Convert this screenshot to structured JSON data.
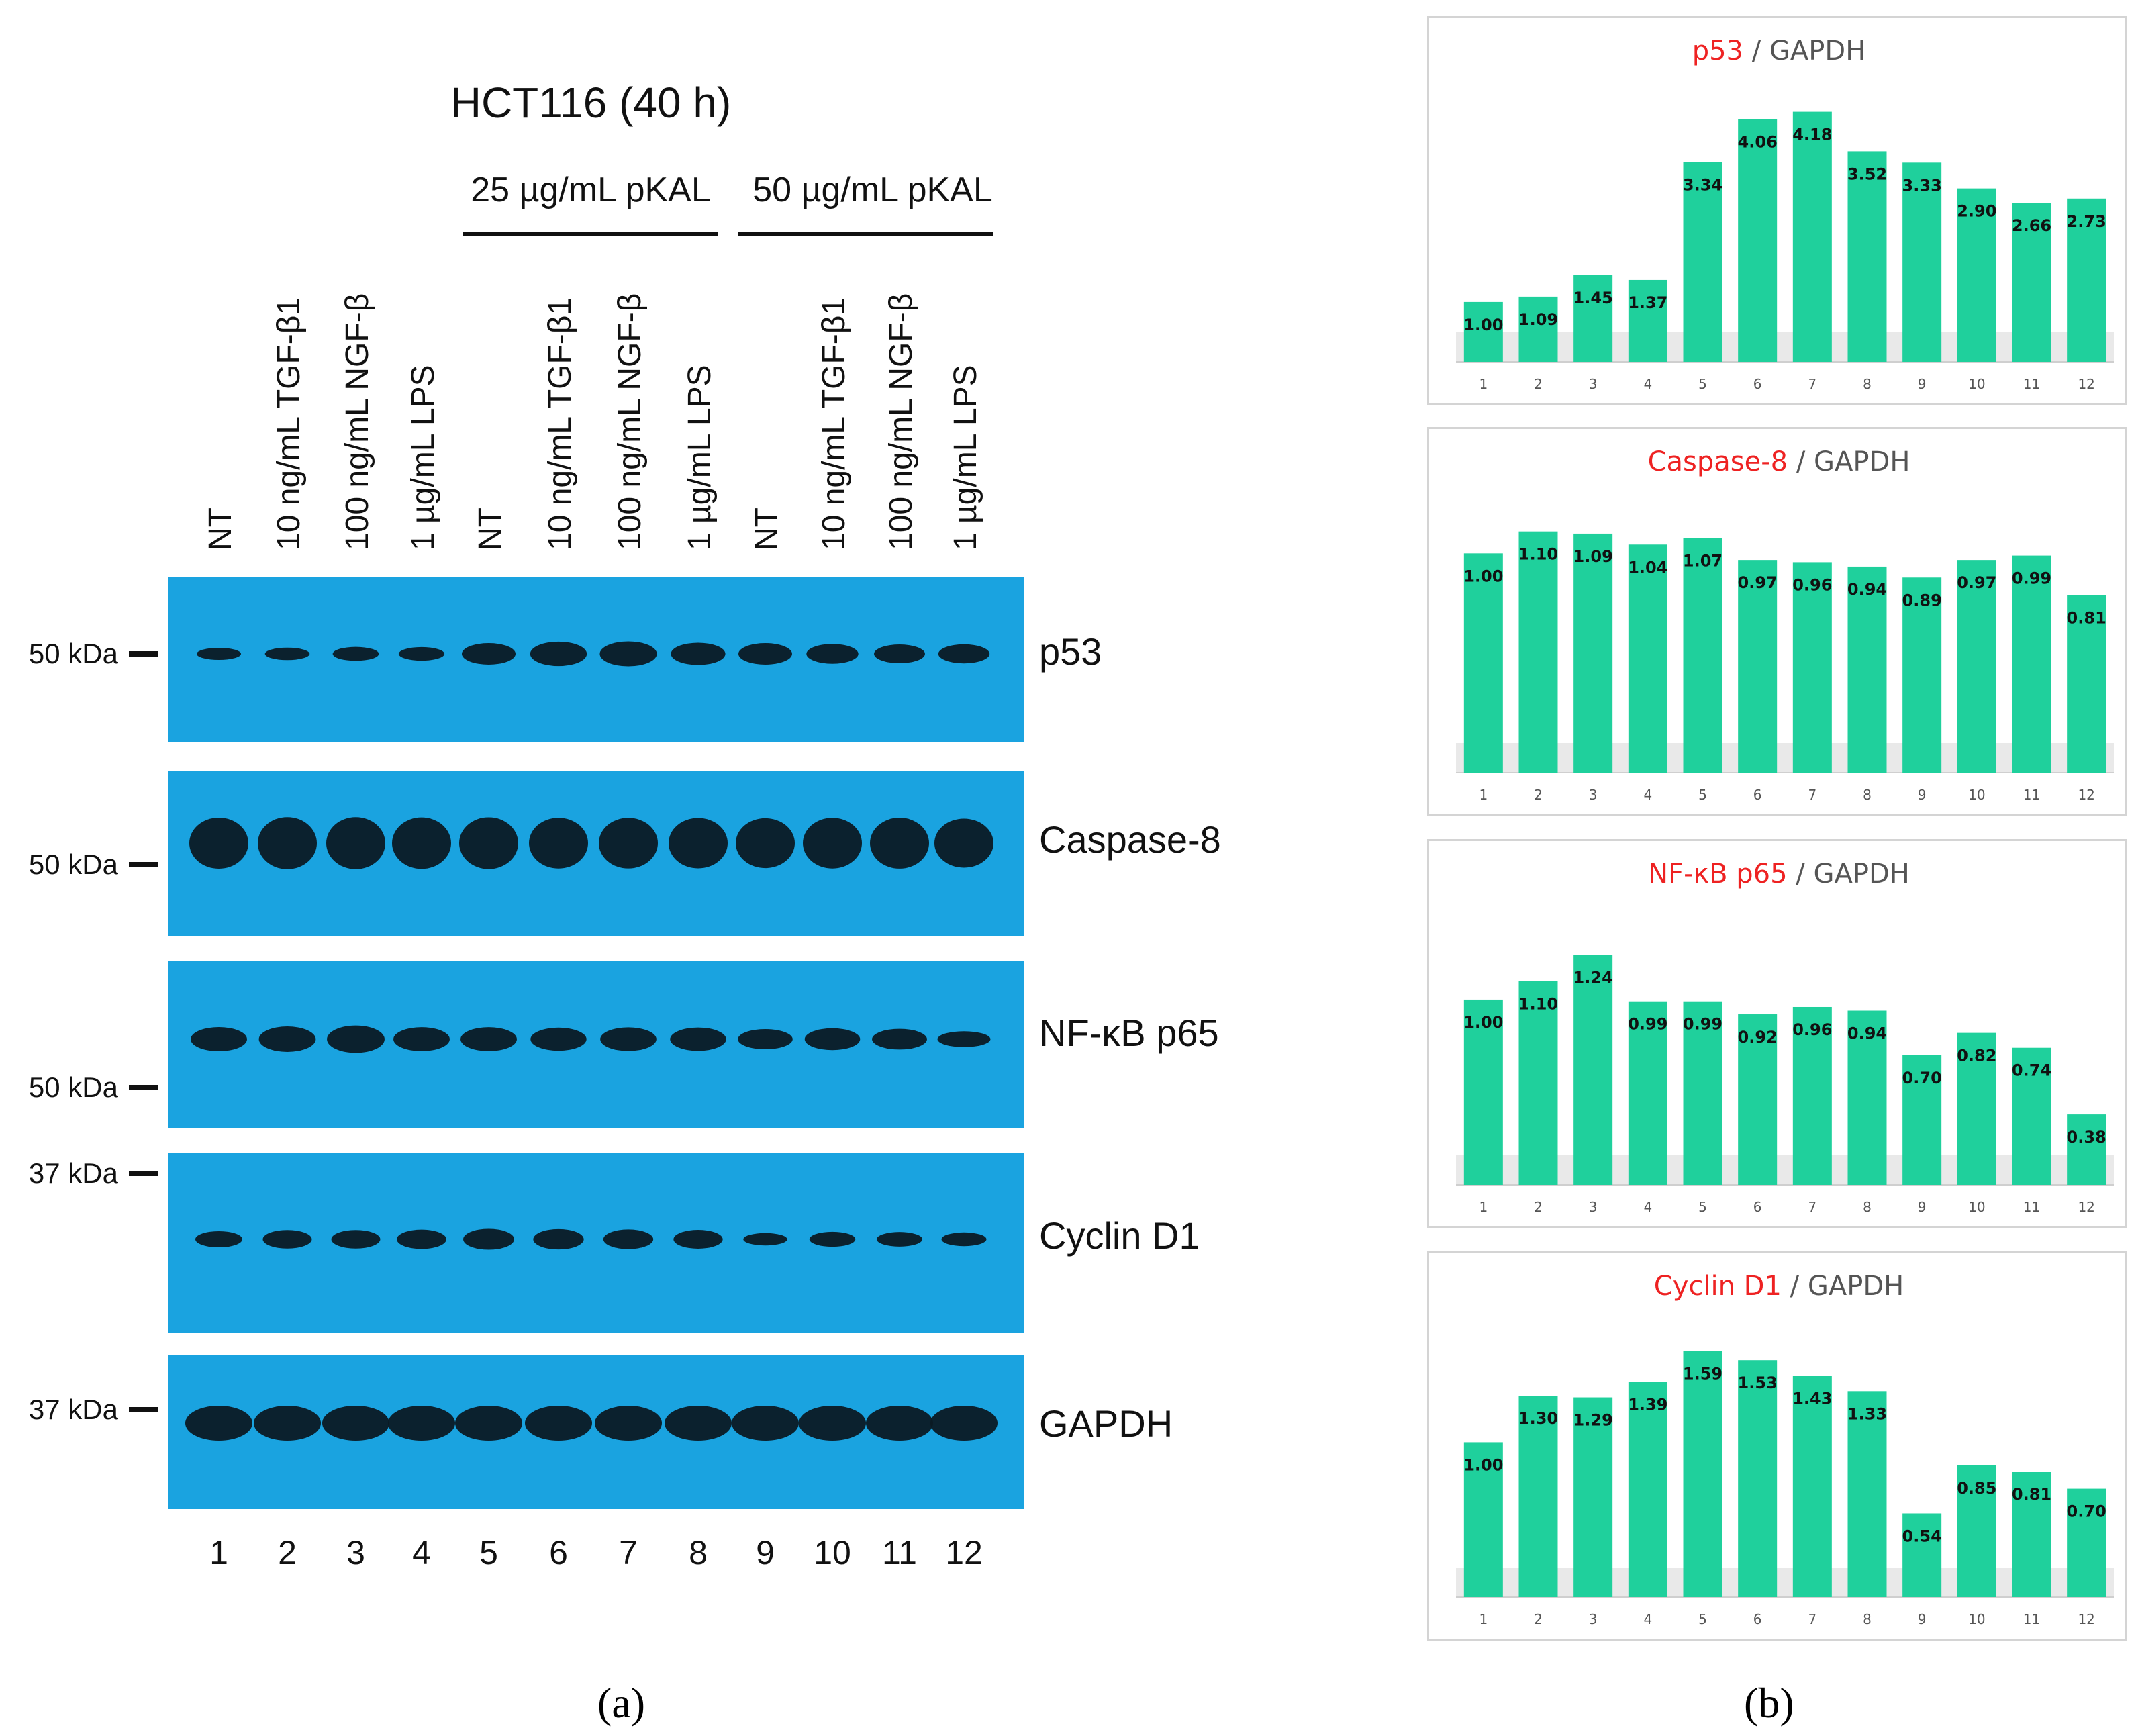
{
  "panel_a": {
    "title": "HCT116 (40 h)",
    "groups": [
      {
        "label": "25 µg/mL pKAL"
      },
      {
        "label": "50 µg/mL pKAL"
      }
    ],
    "lane_labels": [
      "NT",
      "10 ng/mL TGF-β1",
      "100 ng/mL NGF-β",
      "1 µg/mL LPS",
      "NT",
      "10 ng/mL TGF-β1",
      "100 ng/mL NGF-β",
      "1 µg/mL LPS",
      "NT",
      "10 ng/mL TGF-β1",
      "100 ng/mL NGF-β",
      "1 µg/mL LPS"
    ],
    "lane_numbers": [
      "1",
      "2",
      "3",
      "4",
      "5",
      "6",
      "7",
      "8",
      "9",
      "10",
      "11",
      "12"
    ],
    "blots": [
      {
        "protein": "p53",
        "marker": "50 kDa",
        "intensity": [
          1.0,
          1.09,
          1.45,
          1.37,
          3.34,
          4.06,
          4.18,
          3.52,
          3.33,
          2.9,
          2.66,
          2.73
        ]
      },
      {
        "protein": "Caspase-8",
        "marker": "50 kDa",
        "intensity": [
          1.0,
          1.1,
          1.09,
          1.04,
          1.07,
          0.97,
          0.96,
          0.94,
          0.89,
          0.97,
          0.99,
          0.81
        ]
      },
      {
        "protein": "NF-κB p65",
        "marker": "50 kDa",
        "intensity": [
          1.0,
          1.1,
          1.24,
          0.99,
          0.99,
          0.92,
          0.96,
          0.94,
          0.7,
          0.82,
          0.74,
          0.38
        ]
      },
      {
        "protein": "Cyclin D1",
        "marker": "37 kDa",
        "intensity": [
          1.0,
          1.3,
          1.29,
          1.39,
          1.59,
          1.53,
          1.43,
          1.33,
          0.54,
          0.85,
          0.81,
          0.7
        ]
      },
      {
        "protein": "GAPDH",
        "marker": "37 kDa",
        "intensity": [
          1,
          1,
          1,
          1,
          1,
          1,
          1,
          1,
          1,
          1,
          1,
          1
        ]
      }
    ],
    "caption": "(a)",
    "blot_color": "#1aa3e0",
    "band_color": "#0b1a24"
  },
  "panel_b": {
    "caption": "(b)",
    "bar_color": "#1fd09c",
    "highlight_color": "#ee2222"
  },
  "chart_data": [
    {
      "type": "bar",
      "title_protein": "p53",
      "title_ref": " / GAPDH",
      "categories": [
        "1",
        "2",
        "3",
        "4",
        "5",
        "6",
        "7",
        "8",
        "9",
        "10",
        "11",
        "12"
      ],
      "values": [
        1.0,
        1.09,
        1.45,
        1.37,
        3.34,
        4.06,
        4.18,
        3.52,
        3.33,
        2.9,
        2.66,
        2.73
      ],
      "value_labels": [
        "1.00",
        "1.09",
        "1.45",
        "1.37",
        "3.34",
        "4.06",
        "4.18",
        "3.52",
        "3.33",
        "2.90",
        "2.66",
        "2.73"
      ],
      "ylim": [
        0,
        4.4
      ]
    },
    {
      "type": "bar",
      "title_protein": "Caspase-8",
      "title_ref": " / GAPDH",
      "categories": [
        "1",
        "2",
        "3",
        "4",
        "5",
        "6",
        "7",
        "8",
        "9",
        "10",
        "11",
        "12"
      ],
      "values": [
        1.0,
        1.1,
        1.09,
        1.04,
        1.07,
        0.97,
        0.96,
        0.94,
        0.89,
        0.97,
        0.99,
        0.81
      ],
      "value_labels": [
        "1.00",
        "1.10",
        "1.09",
        "1.04",
        "1.07",
        "0.97",
        "0.96",
        "0.94",
        "0.89",
        "0.97",
        "0.99",
        "0.81"
      ],
      "ylim": [
        0,
        1.2
      ]
    },
    {
      "type": "bar",
      "title_protein": "NF-κB p65",
      "title_ref": " / GAPDH",
      "categories": [
        "1",
        "2",
        "3",
        "4",
        "5",
        "6",
        "7",
        "8",
        "9",
        "10",
        "11",
        "12"
      ],
      "values": [
        1.0,
        1.1,
        1.24,
        0.99,
        0.99,
        0.92,
        0.96,
        0.94,
        0.7,
        0.82,
        0.74,
        0.38
      ],
      "value_labels": [
        "1.00",
        "1.10",
        "1.24",
        "0.99",
        "0.99",
        "0.92",
        "0.96",
        "0.94",
        "0.70",
        "0.82",
        "0.74",
        "0.38"
      ],
      "ylim": [
        0,
        1.42
      ]
    },
    {
      "type": "bar",
      "title_protein": "Cyclin D1",
      "title_ref": " / GAPDH",
      "categories": [
        "1",
        "2",
        "3",
        "4",
        "5",
        "6",
        "7",
        "8",
        "9",
        "10",
        "11",
        "12"
      ],
      "values": [
        1.0,
        1.3,
        1.29,
        1.39,
        1.59,
        1.53,
        1.43,
        1.33,
        0.54,
        0.85,
        0.81,
        0.7
      ],
      "value_labels": [
        "1.00",
        "1.30",
        "1.29",
        "1.39",
        "1.59",
        "1.53",
        "1.43",
        "1.33",
        "0.54",
        "0.85",
        "0.81",
        "0.70"
      ],
      "ylim": [
        0,
        1.7
      ]
    }
  ]
}
